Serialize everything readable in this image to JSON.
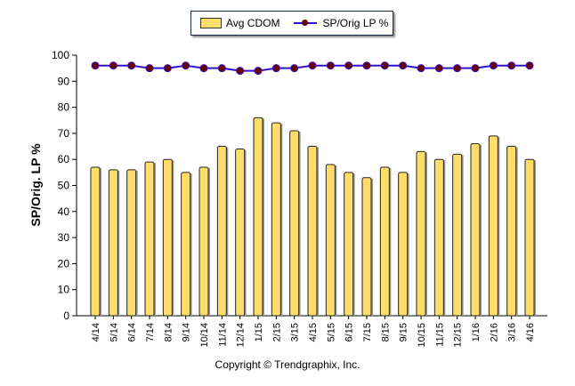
{
  "chart_data": {
    "type": "bar",
    "title": "",
    "xlabel": "",
    "ylabel": "SP/Orig. LP %",
    "ylim": [
      0,
      100
    ],
    "yticks": [
      0,
      10,
      20,
      30,
      40,
      50,
      60,
      70,
      80,
      90,
      100
    ],
    "grid": false,
    "legend": "top",
    "categories": [
      "4/14",
      "5/14",
      "6/14",
      "7/14",
      "8/14",
      "9/14",
      "10/14",
      "11/14",
      "12/14",
      "1/15",
      "2/15",
      "3/15",
      "4/15",
      "5/15",
      "6/15",
      "7/15",
      "8/15",
      "9/15",
      "10/15",
      "11/15",
      "12/15",
      "1/16",
      "2/16",
      "3/16",
      "4/16"
    ],
    "series": [
      {
        "name": "Avg CDOM",
        "type": "bar",
        "color": "#ffdd6a",
        "values": [
          57,
          56,
          56,
          59,
          60,
          55,
          57,
          65,
          64,
          76,
          74,
          71,
          65,
          58,
          55,
          53,
          57,
          55,
          63,
          60,
          62,
          66,
          69,
          65,
          60
        ]
      },
      {
        "name": "SP/Orig LP %",
        "type": "line",
        "color": "#3311cc",
        "marker_color": "#660000",
        "values": [
          96,
          96,
          96,
          95,
          95,
          96,
          95,
          95,
          94,
          94,
          95,
          95,
          96,
          96,
          96,
          96,
          96,
          96,
          95,
          95,
          95,
          95,
          96,
          96,
          96
        ]
      }
    ]
  },
  "copyright": "Copyright © Trendgraphix, Inc."
}
